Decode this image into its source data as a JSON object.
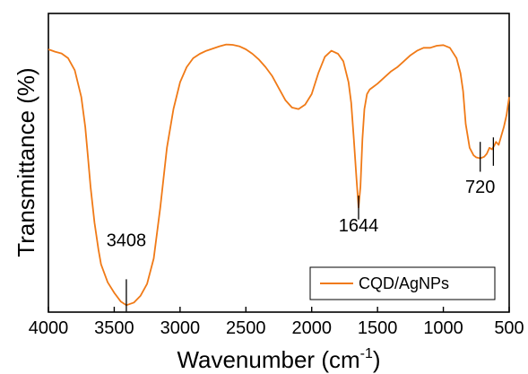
{
  "chart_data": {
    "type": "line",
    "title": "",
    "xlabel": "Wavenumber (cm",
    "xlabel_superscript": "-1",
    "xlabel_suffix": ")",
    "ylabel": "Transmittance (%)",
    "xlim": [
      4000,
      500
    ],
    "x_reversed": true,
    "yticks_shown": false,
    "grid": false,
    "xticks": [
      "4000",
      "3500",
      "3000",
      "2500",
      "2000",
      "1500",
      "1000",
      "500"
    ],
    "legend": {
      "placement": "bottom-right",
      "entries": [
        "CQD/AgNPs"
      ]
    },
    "colors": {
      "series": "#f07a17",
      "axis": "#000000"
    },
    "series": [
      {
        "name": "CQD/AgNPs",
        "x": [
          4000,
          3950,
          3900,
          3850,
          3800,
          3750,
          3720,
          3700,
          3680,
          3650,
          3620,
          3600,
          3550,
          3500,
          3450,
          3408,
          3350,
          3300,
          3250,
          3200,
          3150,
          3100,
          3050,
          3000,
          2950,
          2900,
          2850,
          2800,
          2700,
          2650,
          2600,
          2550,
          2500,
          2450,
          2400,
          2350,
          2300,
          2250,
          2200,
          2150,
          2100,
          2050,
          2000,
          1950,
          1900,
          1850,
          1800,
          1760,
          1720,
          1700,
          1680,
          1660,
          1644,
          1630,
          1615,
          1600,
          1580,
          1560,
          1530,
          1500,
          1450,
          1400,
          1350,
          1300,
          1250,
          1200,
          1150,
          1100,
          1050,
          1000,
          950,
          900,
          870,
          850,
          830,
          800,
          770,
          750,
          720,
          690,
          670,
          650,
          630,
          610,
          600,
          580,
          560,
          540,
          520,
          500
        ],
        "y": [
          88.0,
          87.2,
          86.6,
          85.0,
          81.0,
          72.0,
          62.0,
          52.0,
          42.0,
          30.0,
          21.0,
          16.0,
          10.0,
          6.5,
          3.5,
          2.3,
          3.2,
          5.5,
          9.5,
          18.0,
          35.0,
          55.0,
          68.0,
          77.0,
          82.0,
          85.0,
          86.5,
          87.5,
          89.0,
          89.6,
          89.5,
          89.0,
          88.0,
          86.5,
          84.5,
          82.0,
          79.0,
          75.0,
          71.0,
          68.5,
          68.0,
          69.5,
          73.0,
          80.0,
          85.5,
          87.5,
          86.5,
          84.0,
          77.0,
          70.0,
          58.0,
          45.0,
          35.0,
          42.0,
          58.0,
          68.0,
          73.0,
          74.5,
          75.5,
          76.5,
          78.5,
          80.5,
          82.0,
          84.0,
          86.0,
          87.5,
          88.5,
          88.5,
          89.2,
          89.4,
          88.5,
          85.0,
          80.0,
          74.0,
          63.0,
          55.0,
          52.5,
          51.8,
          51.5,
          52.0,
          53.0,
          55.0,
          54.5,
          56.0,
          57.0,
          56.0,
          59.0,
          62.0,
          66.0,
          72.0
        ]
      }
    ],
    "annotations": [
      {
        "text": "3408",
        "x": 3408,
        "y_top": 11.0,
        "y_bottom": 0.2,
        "label_x": 3408,
        "label_y": 22.0
      },
      {
        "text": "1644",
        "x": 1644,
        "y_top": 39.0,
        "y_bottom": 31.0,
        "label_x": 1644,
        "label_y": 27.0
      },
      {
        "text": "720",
        "x": 720,
        "y_top": 57.0,
        "y_bottom": 47.0,
        "label_x": 720,
        "label_y": 40.0
      },
      {
        "text": "",
        "x": 620,
        "y_top": 58.5,
        "y_bottom": 49.0
      }
    ]
  }
}
